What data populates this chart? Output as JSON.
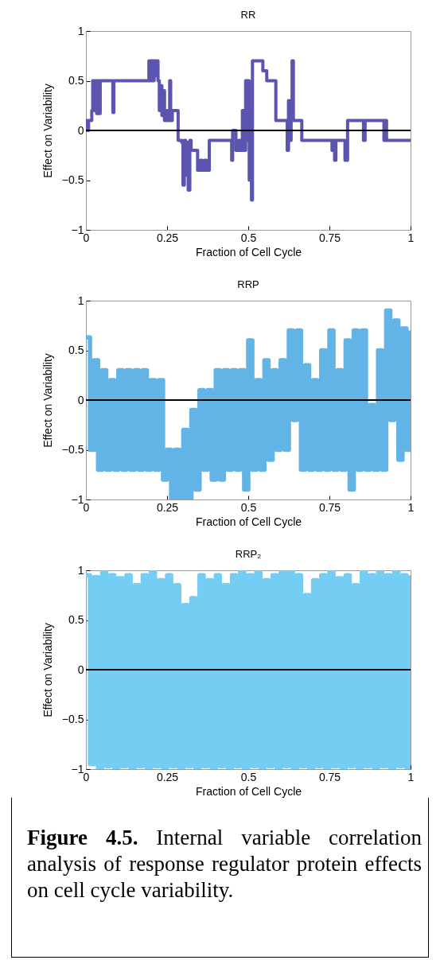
{
  "chart_data": [
    {
      "type": "step",
      "title": "RR",
      "xlabel": "Fraction of Cell Cycle",
      "ylabel": "Effect on Variability",
      "xlim": [
        0,
        1
      ],
      "ylim": [
        -1,
        1
      ],
      "xticks": [
        0,
        0.25,
        0.5,
        0.75,
        1
      ],
      "yticks": [
        -1,
        -0.5,
        0,
        0.5,
        1
      ],
      "grid": false,
      "ref_lines": [
        {
          "axis": "y",
          "value": 0,
          "color": "#000000"
        }
      ],
      "x": [
        0,
        0.004,
        0.008,
        0.018,
        0.021,
        0.025,
        0.028,
        0.033,
        0.036,
        0.04,
        0.044,
        0.083,
        0.086,
        0.194,
        0.198,
        0.202,
        0.206,
        0.21,
        0.214,
        0.218,
        0.222,
        0.226,
        0.23,
        0.234,
        0.238,
        0.242,
        0.25,
        0.254,
        0.258,
        0.261,
        0.266,
        0.284,
        0.295,
        0.299,
        0.303,
        0.307,
        0.311,
        0.315,
        0.32,
        0.324,
        0.344,
        0.352,
        0.358,
        0.366,
        0.371,
        0.38,
        0.449,
        0.452,
        0.462,
        0.47,
        0.476,
        0.482,
        0.488,
        0.492,
        0.496,
        0.5,
        0.503,
        0.507,
        0.51,
        0.513,
        0.545,
        0.557,
        0.585,
        0.62,
        0.624,
        0.628,
        0.632,
        0.635,
        0.639,
        0.665,
        0.758,
        0.762,
        0.766,
        0.77,
        0.798,
        0.806,
        0.855,
        0.86,
        0.918,
        0.922,
        0.926,
        1
      ],
      "series": [
        {
          "color": "#5b55b0",
          "values": [
            0.1,
            0.0,
            0.1,
            0.2,
            0.5,
            0.2,
            0.5,
            0.17,
            0.5,
            0.17,
            0.5,
            0.18,
            0.5,
            0.7,
            0.5,
            0.7,
            0.5,
            0.7,
            0.55,
            0.7,
            0.5,
            0.2,
            0.45,
            0.15,
            0.4,
            0.1,
            0.2,
            0.1,
            0.5,
            0.1,
            0.2,
            -0.1,
            -0.12,
            -0.55,
            -0.1,
            -0.45,
            -0.12,
            -0.6,
            -0.1,
            -0.2,
            -0.4,
            -0.3,
            -0.4,
            -0.3,
            -0.4,
            -0.1,
            -0.3,
            0.0,
            -0.2,
            -0.1,
            -0.2,
            0.2,
            -0.2,
            0.5,
            -0.1,
            0.5,
            -0.5,
            0.2,
            -0.7,
            0.7,
            0.6,
            0.5,
            0.1,
            -0.2,
            0.3,
            -0.1,
            0.1,
            0.7,
            0.1,
            -0.1,
            -0.2,
            -0.1,
            -0.3,
            -0.1,
            -0.3,
            0.1,
            -0.1,
            0.1,
            -0.1,
            0.1,
            -0.1,
            -0.1
          ]
        }
      ]
    },
    {
      "type": "step",
      "title": "RRP",
      "xlabel": "Fraction of Cell Cycle",
      "ylabel": "Effect on Variability",
      "xlim": [
        0,
        1
      ],
      "ylim": [
        -1,
        1
      ],
      "xticks": [
        0,
        0.25,
        0.5,
        0.75,
        1
      ],
      "yticks": [
        -1,
        -0.5,
        0,
        0.5,
        1
      ],
      "grid": false,
      "ref_lines": [
        {
          "axis": "y",
          "value": 0,
          "color": "#000000"
        }
      ],
      "x": [
        0,
        0.0125,
        0.025,
        0.0375,
        0.05,
        0.0625,
        0.075,
        0.0875,
        0.1,
        0.1125,
        0.125,
        0.1375,
        0.15,
        0.1625,
        0.175,
        0.1875,
        0.2,
        0.2125,
        0.225,
        0.2375,
        0.25,
        0.2625,
        0.275,
        0.2875,
        0.3,
        0.3125,
        0.325,
        0.3375,
        0.35,
        0.3625,
        0.375,
        0.3875,
        0.4,
        0.4125,
        0.425,
        0.4375,
        0.45,
        0.4625,
        0.475,
        0.4875,
        0.5,
        0.5125,
        0.525,
        0.5375,
        0.55,
        0.5625,
        0.575,
        0.5875,
        0.6,
        0.6125,
        0.625,
        0.6375,
        0.65,
        0.6625,
        0.675,
        0.6875,
        0.7,
        0.7125,
        0.725,
        0.7375,
        0.75,
        0.7625,
        0.775,
        0.7875,
        0.8,
        0.8125,
        0.825,
        0.8375,
        0.85,
        0.8625,
        0.875,
        0.8875,
        0.9,
        0.9125,
        0.925,
        0.9375,
        0.95,
        0.9625,
        0.975,
        0.9875,
        1
      ],
      "series": [
        {
          "color": "#62b4e6",
          "values": [
            0.63,
            -0.5,
            0.4,
            -0.7,
            0.3,
            -0.7,
            0.2,
            -0.7,
            0.3,
            -0.7,
            0.3,
            -0.7,
            0.3,
            -0.7,
            0.3,
            -0.7,
            0.2,
            -0.7,
            0.2,
            -0.8,
            -0.5,
            -1.0,
            -0.5,
            -1.0,
            -0.3,
            -1.0,
            -0.1,
            -0.9,
            0.1,
            -0.7,
            0.1,
            -0.8,
            0.3,
            -0.8,
            0.3,
            -0.7,
            0.3,
            -0.7,
            0.3,
            -0.9,
            0.6,
            -0.7,
            0.2,
            -0.7,
            0.4,
            -0.6,
            0.3,
            -0.5,
            0.4,
            -0.5,
            0.7,
            -0.2,
            0.7,
            -0.7,
            0.35,
            -0.7,
            0.2,
            -0.7,
            0.5,
            -0.7,
            0.7,
            -0.7,
            0.3,
            -0.7,
            0.6,
            -0.9,
            0.7,
            -0.7,
            0.7,
            -0.7,
            -0.05,
            -0.7,
            0.5,
            -0.7,
            0.9,
            -0.2,
            0.8,
            -0.6,
            0.72,
            -0.5,
            0.7
          ]
        }
      ]
    },
    {
      "type": "step",
      "title": "RRP₂",
      "xlabel": "Fraction of Cell Cycle",
      "ylabel": "Effect on Variability",
      "xlim": [
        0,
        1
      ],
      "ylim": [
        -1,
        1
      ],
      "xticks": [
        0,
        0.25,
        0.5,
        0.75,
        1
      ],
      "yticks": [
        -1,
        -0.5,
        0,
        0.5,
        1
      ],
      "grid": false,
      "ref_lines": [
        {
          "axis": "y",
          "value": 0,
          "color": "#000000"
        }
      ],
      "x": [
        0,
        0.0125,
        0.025,
        0.0375,
        0.05,
        0.0625,
        0.075,
        0.0875,
        0.1,
        0.1125,
        0.125,
        0.1375,
        0.15,
        0.1625,
        0.175,
        0.1875,
        0.2,
        0.2125,
        0.225,
        0.2375,
        0.25,
        0.2625,
        0.275,
        0.2875,
        0.3,
        0.3125,
        0.325,
        0.3375,
        0.35,
        0.3625,
        0.375,
        0.3875,
        0.4,
        0.4125,
        0.425,
        0.4375,
        0.45,
        0.4625,
        0.475,
        0.4875,
        0.5,
        0.5125,
        0.525,
        0.5375,
        0.55,
        0.5625,
        0.575,
        0.5875,
        0.6,
        0.6125,
        0.625,
        0.6375,
        0.65,
        0.6625,
        0.675,
        0.6875,
        0.7,
        0.7125,
        0.725,
        0.7375,
        0.75,
        0.7625,
        0.775,
        0.7875,
        0.8,
        0.8125,
        0.825,
        0.8375,
        0.85,
        0.8625,
        0.875,
        0.8875,
        0.9,
        0.9125,
        0.925,
        0.9375,
        0.95,
        0.9625,
        0.975,
        0.9875,
        1
      ],
      "series": [
        {
          "color": "#74cdf2",
          "values": [
            0.95,
            -0.95,
            0.93,
            -1,
            1,
            -0.97,
            0.95,
            -1,
            0.92,
            -0.97,
            0.95,
            -1,
            0.85,
            -0.97,
            0.95,
            -1,
            1,
            -0.97,
            0.9,
            -1,
            0.95,
            -0.97,
            0.85,
            -1,
            0.65,
            -0.97,
            0.72,
            -1,
            0.95,
            -0.97,
            0.9,
            -1,
            0.95,
            -0.97,
            0.85,
            -1,
            0.95,
            -0.97,
            1,
            -1,
            0.95,
            -0.97,
            1,
            -1,
            0.9,
            -0.97,
            0.95,
            -1,
            1,
            -0.97,
            1,
            -1,
            0.95,
            -0.97,
            0.75,
            -1,
            0.9,
            -0.97,
            0.95,
            -1,
            1,
            -0.97,
            0.92,
            -1,
            0.95,
            -0.97,
            0.85,
            -1,
            1,
            -0.97,
            0.95,
            -1,
            1,
            -0.97,
            0.95,
            -1,
            1,
            -0.97,
            0.95,
            -1,
            0.95
          ]
        }
      ],
      "annotations": [
        "Figure 4.5. Internal variable correlation analysis of response regulator protein effects on cell cycle variability."
      ]
    }
  ]
}
